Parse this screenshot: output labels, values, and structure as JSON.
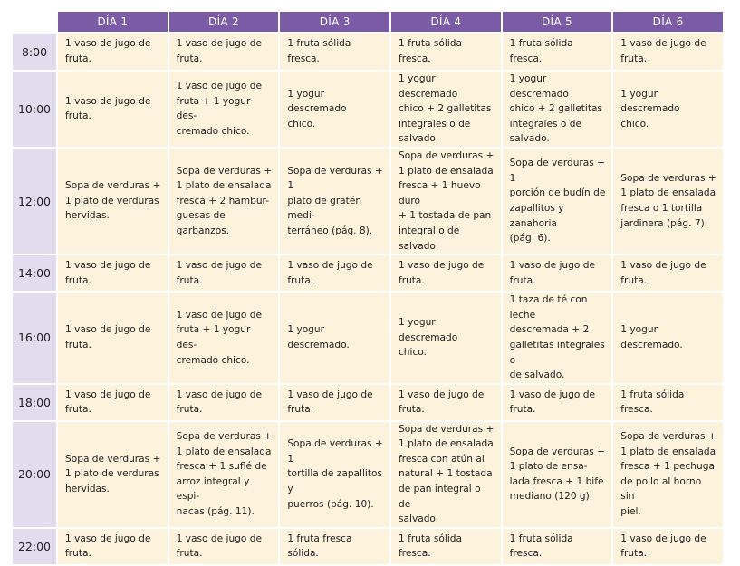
{
  "header": {
    "days": [
      "DÍA 1",
      "DÍA 2",
      "DÍA 3",
      "DÍA 4",
      "DÍA 5",
      "DÍA 6"
    ]
  },
  "rows": [
    {
      "time": "8:00",
      "cells": [
        "1 vaso de jugo de\nfruta.",
        "1 vaso de jugo de\nfruta.",
        "1 fruta sólida fresca.",
        "1 fruta sólida fresca.",
        "1 fruta sólida fresca.",
        "1 vaso de jugo de\nfruta."
      ]
    },
    {
      "time": "10:00",
      "cells": [
        "1 vaso de jugo de\nfruta.",
        "1 vaso de jugo de\nfruta + 1 yogur des-\ncremado chico.",
        "1 yogur descremado\nchico.",
        "1 yogur descremado\nchico + 2 galletitas\nintegrales o de\nsalvado.",
        "1 yogur descremado\nchico + 2 galletitas\nintegrales o de\nsalvado.",
        "1 yogur descremado\nchico."
      ]
    },
    {
      "time": "12:00",
      "cells": [
        "Sopa de verduras +\n1 plato de verduras\nhervidas.",
        "Sopa de verduras +\n1 plato de ensalada\nfresca + 2 hambur-\nguesas de garbanzos.",
        "Sopa de verduras + 1\nplato de gratén medi-\nterráneo (pág. 8).",
        "Sopa de verduras +\n1 plato de ensalada\nfresca + 1 huevo duro\n+ 1 tostada de pan\nintegral o de salvado.",
        "Sopa de verduras + 1\nporción de budín de\nzapallitos y zanahoria\n(pág. 6).",
        "Sopa de verduras +\n1 plato de ensalada\nfresca o 1 tortilla\njardinera (pág. 7)."
      ]
    },
    {
      "time": "14:00",
      "cells": [
        "1 vaso de jugo de\nfruta.",
        "1 vaso de jugo de\nfruta.",
        "1 vaso de jugo de\nfruta.",
        "1 vaso de jugo de\nfruta.",
        "1 vaso de jugo de\nfruta.",
        "1 vaso de jugo de\nfruta."
      ]
    },
    {
      "time": "16:00",
      "cells": [
        "1 vaso de jugo de\nfruta.",
        "1 vaso de jugo de\nfruta + 1 yogur des-\ncremado chico.",
        "1 yogur descremado.",
        "1 yogur descremado\nchico.",
        "1 taza de té con leche\ndescremada + 2\ngalletitas integrales o\nde salvado.",
        "1 yogur descremado."
      ]
    },
    {
      "time": "18:00",
      "cells": [
        "1 vaso de jugo de\nfruta.",
        "1 vaso de jugo de\nfruta.",
        "1 vaso de jugo de\nfruta.",
        "1 vaso de jugo de\nfruta.",
        "1 vaso de jugo de\nfruta.",
        "1 fruta sólida fresca."
      ]
    },
    {
      "time": "20:00",
      "cells": [
        "Sopa de verduras +\n1 plato de verduras\nhervidas.",
        "Sopa de verduras +\n1 plato de ensalada\nfresca + 1 suflé de\narroz integral y espi-\nnacas (pág. 11).",
        "Sopa de verduras + 1\ntortilla de zapallitos y\npuerros (pág. 10).",
        "Sopa de verduras +\n1 plato de ensalada\nfresca con atún al\nnatural + 1 tostada\nde pan integral o de\nsalvado.",
        "Sopa de verduras +\n1 plato de ensa-\nlada fresca + 1 bife\nmediano (120 g).",
        "Sopa de verduras +\n1 plato de ensalada\nfresca + 1 pechuga\nde pollo al horno sin\npiel."
      ]
    },
    {
      "time": "22:00",
      "cells": [
        "1 vaso de jugo de\nfruta.",
        "1 vaso de jugo de\nfruta.",
        "1 fruta fresca sólida.",
        "1 fruta sólida fresca.",
        "1 fruta sólida fresca.",
        "1 vaso de jugo de\nfruta."
      ]
    }
  ]
}
